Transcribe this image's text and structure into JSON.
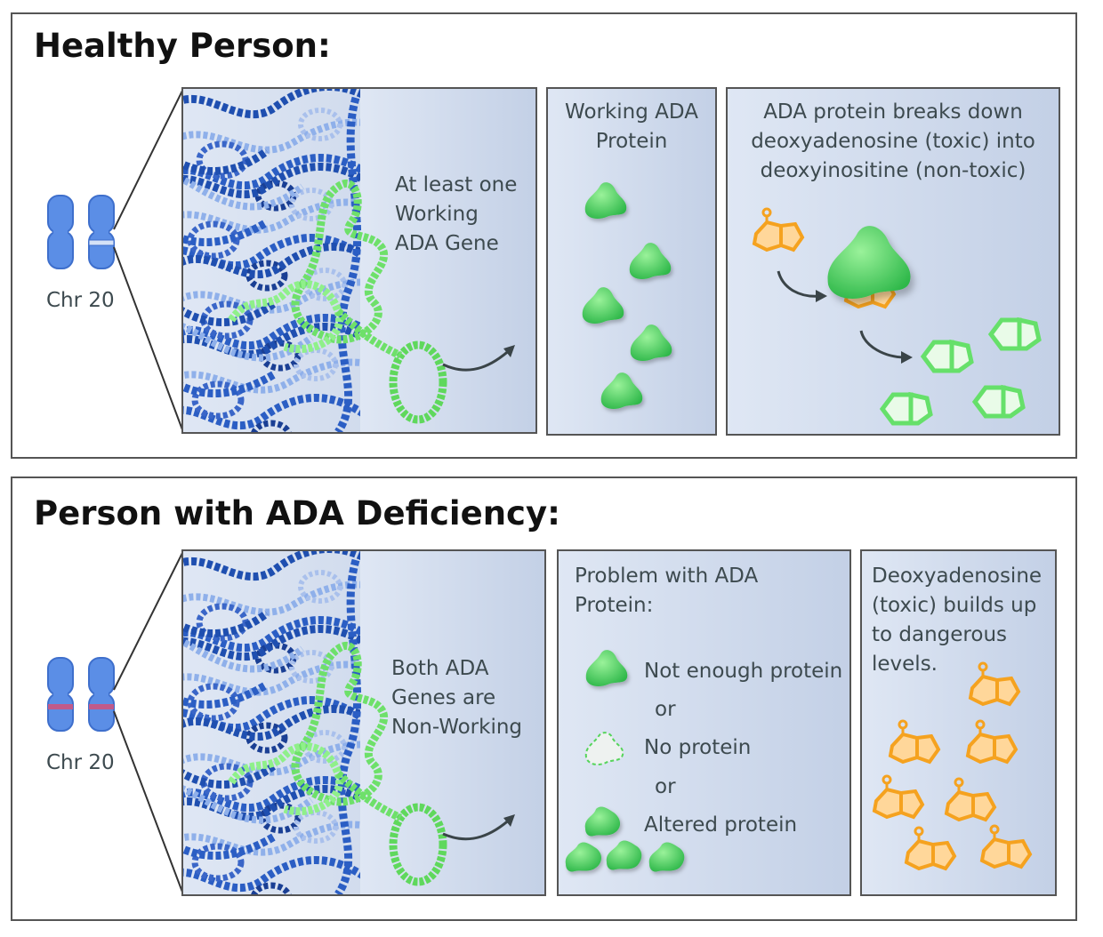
{
  "healthy": {
    "title": "Healthy Person:",
    "chromosome_label": "Chr 20",
    "gene_label": [
      "At least one",
      "Working",
      "ADA Gene"
    ],
    "protein_label": [
      "Working ADA",
      "Protein"
    ],
    "reaction_label": [
      "ADA protein breaks down",
      "deoxyadenosine (toxic) into",
      "deoxyinositine (non-toxic)"
    ]
  },
  "deficiency": {
    "title": "Person with ADA Deficiency:",
    "chromosome_label": "Chr 20",
    "gene_label": [
      "Both ADA",
      "Genes are",
      "Non-Working"
    ],
    "problem_title": [
      "Problem with ADA",
      "Protein:"
    ],
    "options": {
      "not_enough": "Not enough protein",
      "or1": "or",
      "none": "No protein",
      "or2": "or",
      "altered": "Altered protein"
    },
    "buildup_label": [
      "Deoxyadenosine",
      "(toxic) builds up",
      "to dangerous",
      "levels."
    ]
  },
  "colors": {
    "chromosome": "#5b8ee6",
    "dna_dark": "#1f4fb0",
    "dna_light": "#9fb8e8",
    "gene_green": "#6ee06a",
    "protein_green": "#4fd05a",
    "toxic_orange": "#f5a21f",
    "nontoxic_green": "#66e06a",
    "panel_bg": "#dbe4f2"
  },
  "icons": [
    "chromosome-icon",
    "dna-strand",
    "protein-blob-icon",
    "molecule-hexagon-icon",
    "arrow-icon"
  ]
}
